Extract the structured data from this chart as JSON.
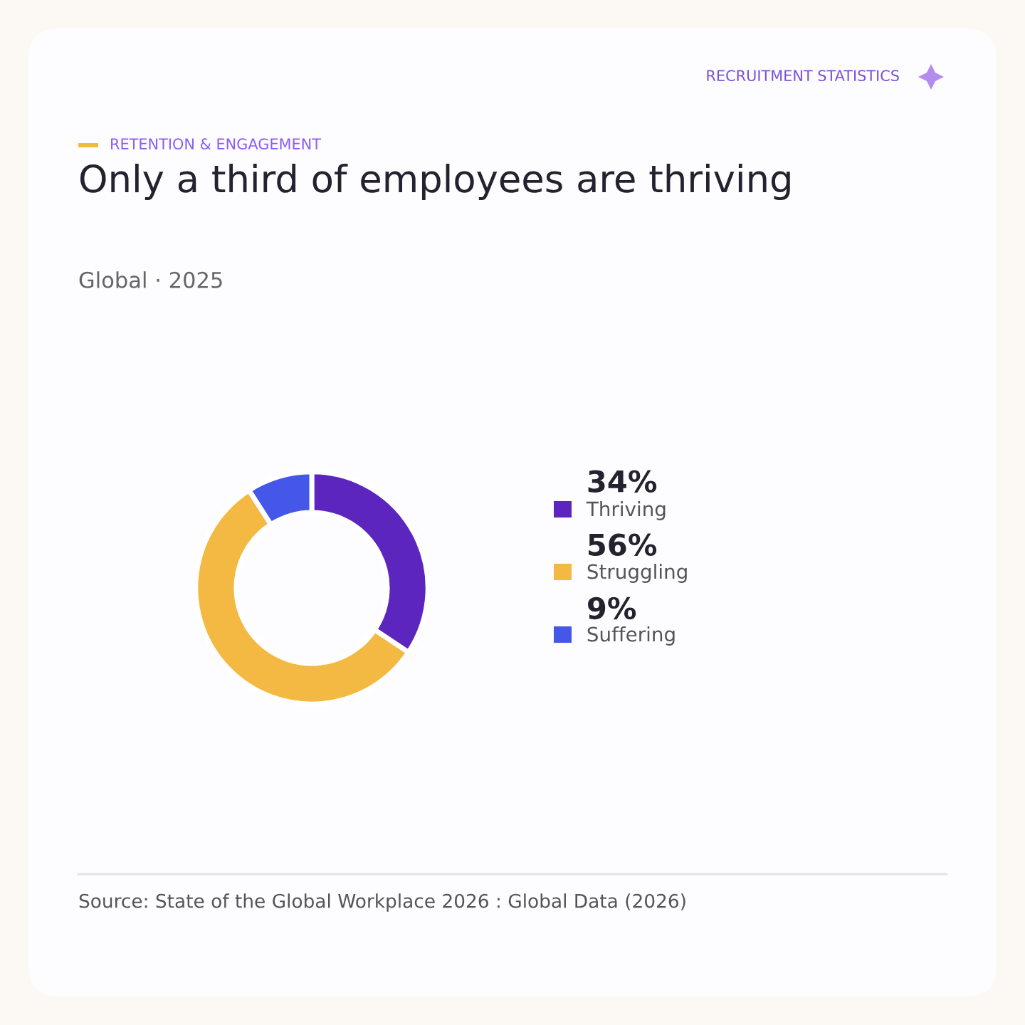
{
  "chart_data": {
    "type": "donut",
    "title": "Only a third of employees are thriving",
    "subtitle": "Global · 2025",
    "annotations": [
      "RECRUITMENT STATISTICS",
      "RETENTION & ENGAGEMENT",
      "Source: State of the Global Workplace 2026 : Global Data (2026)"
    ],
    "categories": [
      "Thriving",
      "Struggling",
      "Suffering"
    ],
    "values": [
      34,
      56,
      9
    ],
    "value_labels": [
      "34%",
      "56%",
      "9%"
    ],
    "colors": [
      "#5b25be",
      "#f4b942",
      "#4457e8"
    ],
    "legend": "right"
  }
}
